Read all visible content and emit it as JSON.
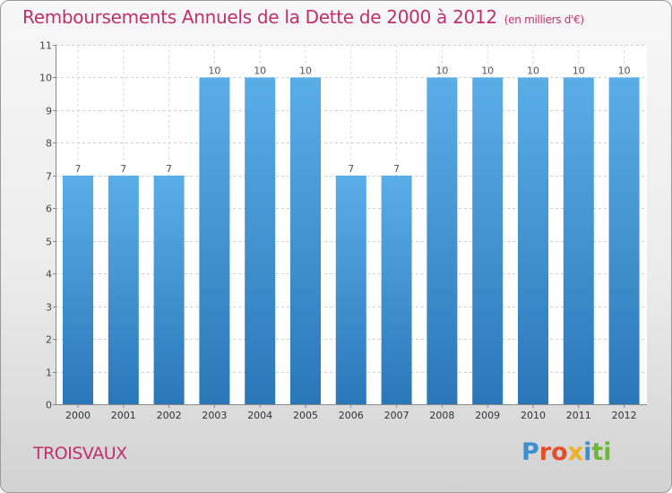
{
  "chart_data": {
    "type": "bar",
    "title": "Remboursements Annuels de la Dette de 2000 à 2012",
    "subtitle": "(en milliers d'€)",
    "categories": [
      "2000",
      "2001",
      "2002",
      "2003",
      "2004",
      "2005",
      "2006",
      "2007",
      "2008",
      "2009",
      "2010",
      "2011",
      "2012"
    ],
    "values": [
      7,
      7,
      7,
      10,
      10,
      10,
      7,
      7,
      10,
      10,
      10,
      10,
      10
    ],
    "ylim": [
      0,
      11
    ],
    "yticks": [
      0,
      1,
      2,
      3,
      4,
      5,
      6,
      7,
      8,
      9,
      10,
      11
    ],
    "grid": true,
    "bar_color": "#4a9fe0",
    "title_color": "#c0306d"
  },
  "footer": {
    "commune": "TROISVAUX",
    "logo": "Proxiti"
  }
}
